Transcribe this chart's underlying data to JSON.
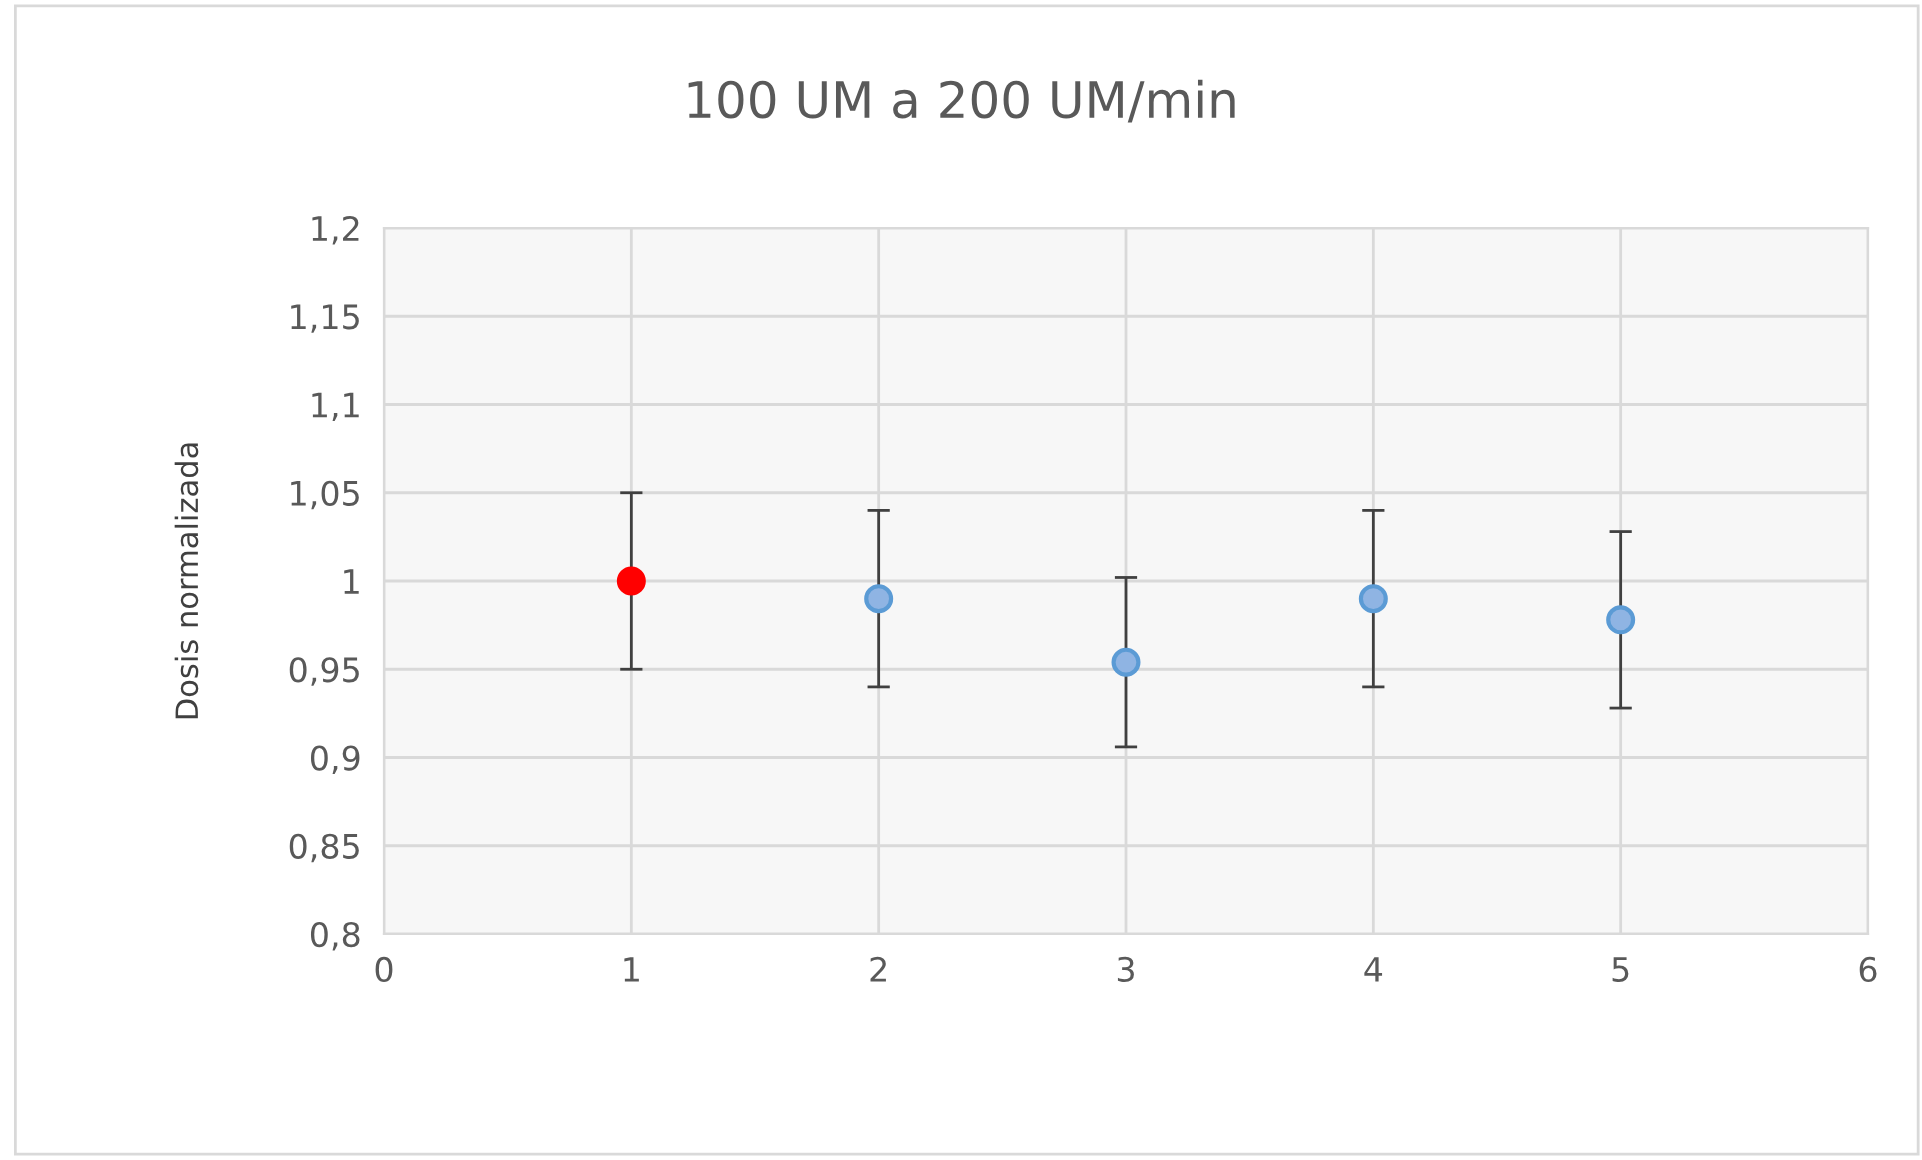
{
  "chart_data": {
    "type": "scatter",
    "title": "100 UM a 200 UM/min",
    "ylabel": "Dosis normalizada",
    "x": [
      1,
      2,
      3,
      4,
      5
    ],
    "values": [
      1.0,
      0.99,
      0.954,
      0.99,
      0.978
    ],
    "errors": [
      0.05,
      0.05,
      0.048,
      0.05,
      0.05
    ],
    "colors": [
      "#ff0000",
      "#8fb4e3",
      "#8fb4e3",
      "#8fb4e3",
      "#8fb4e3"
    ],
    "xlim": [
      0,
      6
    ],
    "xticks": [
      0,
      1,
      2,
      3,
      4,
      5,
      6
    ],
    "ylim": [
      0.8,
      1.2
    ],
    "yticks": [
      {
        "value": 0.8,
        "label": "0,8"
      },
      {
        "value": 0.85,
        "label": "0,85"
      },
      {
        "value": 0.9,
        "label": "0,9"
      },
      {
        "value": 0.95,
        "label": "0,95"
      },
      {
        "value": 1.0,
        "label": "1"
      },
      {
        "value": 1.05,
        "label": "1,05"
      },
      {
        "value": 1.1,
        "label": "1,1"
      },
      {
        "value": 1.15,
        "label": "1,15"
      },
      {
        "value": 1.2,
        "label": "1,2"
      }
    ],
    "grid": true,
    "marker": "circle",
    "legend": false
  }
}
